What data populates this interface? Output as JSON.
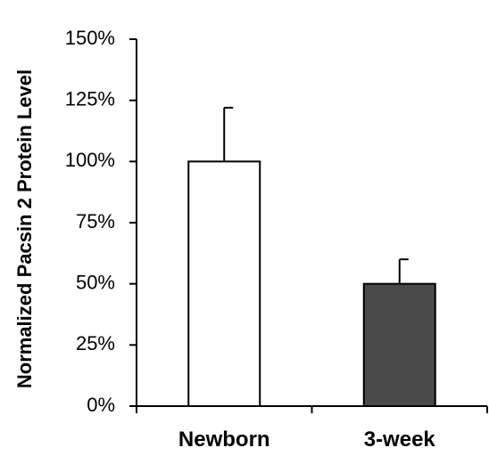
{
  "chart_data": {
    "type": "bar",
    "title": "",
    "xlabel": "",
    "ylabel": "Normalized Pacsin 2 Protein Level",
    "categories": [
      "Newborn",
      "3-week"
    ],
    "values": [
      100,
      50
    ],
    "errors": [
      22,
      10
    ],
    "ylim": [
      0,
      150
    ],
    "yticks": [
      0,
      25,
      50,
      75,
      100,
      125,
      150
    ],
    "ytick_labels": [
      "0%",
      "25%",
      "50%",
      "75%",
      "100%",
      "125%",
      "150%"
    ],
    "bar_colors": [
      "#ffffff",
      "#4a4a4a"
    ],
    "grid": false,
    "legend": false
  }
}
